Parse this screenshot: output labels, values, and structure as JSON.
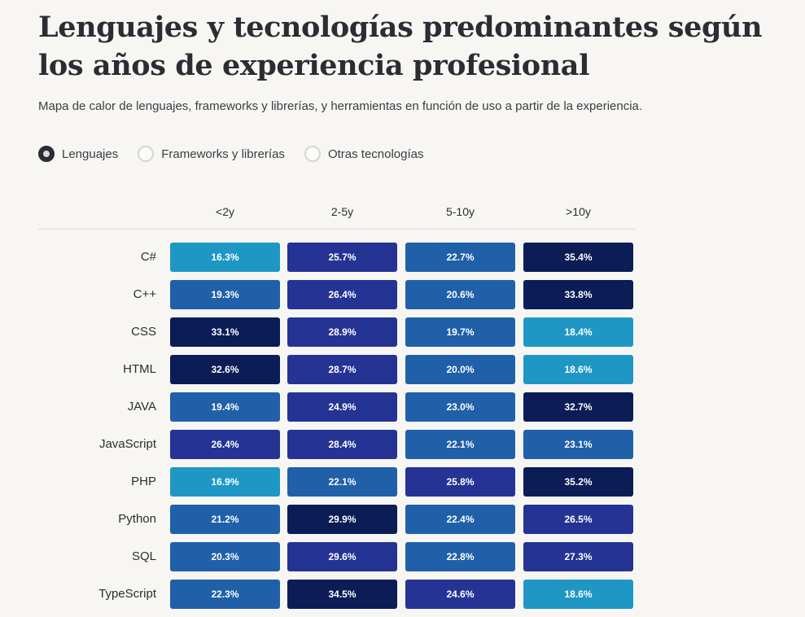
{
  "title": "Lenguajes y tecnologías predominantes según los años de experiencia profesional",
  "subtitle": "Mapa de calor de lenguajes, frameworks y librerías, y herramientas en función de uso a partir de la experiencia.",
  "filters": [
    {
      "label": "Lenguajes",
      "selected": true
    },
    {
      "label": "Frameworks y librerías",
      "selected": false
    },
    {
      "label": "Otras tecnologías",
      "selected": false
    }
  ],
  "colors": {
    "light": "#1f97c4",
    "medium": "#2060a8",
    "strong": "#253394",
    "darkest": "#0b1c56"
  },
  "chart_data": {
    "type": "heatmap",
    "columns": [
      "<2y",
      "2-5y",
      "5-10y",
      ">10y"
    ],
    "rows": [
      {
        "label": "C#",
        "values": [
          16.3,
          25.7,
          22.7,
          35.4
        ],
        "display": [
          "16.3%",
          "25.7%",
          "22.7%",
          "35.4%"
        ]
      },
      {
        "label": "C++",
        "values": [
          19.3,
          26.4,
          20.6,
          33.8
        ],
        "display": [
          "19.3%",
          "26.4%",
          "20.6%",
          "33.8%"
        ]
      },
      {
        "label": "CSS",
        "values": [
          33.1,
          28.9,
          19.7,
          18.4
        ],
        "display": [
          "33.1%",
          "28.9%",
          "19.7%",
          "18.4%"
        ]
      },
      {
        "label": "HTML",
        "values": [
          32.6,
          28.7,
          20.0,
          18.6
        ],
        "display": [
          "32.6%",
          "28.7%",
          "20.0%",
          "18.6%"
        ]
      },
      {
        "label": "JAVA",
        "values": [
          19.4,
          24.9,
          23.0,
          32.7
        ],
        "display": [
          "19.4%",
          "24.9%",
          "23.0%",
          "32.7%"
        ]
      },
      {
        "label": "JavaScript",
        "values": [
          26.4,
          28.4,
          22.1,
          23.1
        ],
        "display": [
          "26.4%",
          "28.4%",
          "22.1%",
          "23.1%"
        ]
      },
      {
        "label": "PHP",
        "values": [
          16.9,
          22.1,
          25.8,
          35.2
        ],
        "display": [
          "16.9%",
          "22.1%",
          "25.8%",
          "35.2%"
        ]
      },
      {
        "label": "Python",
        "values": [
          21.2,
          29.9,
          22.4,
          26.5
        ],
        "display": [
          "21.2%",
          "29.9%",
          "22.4%",
          "26.5%"
        ]
      },
      {
        "label": "SQL",
        "values": [
          20.3,
          29.6,
          22.8,
          27.3
        ],
        "display": [
          "20.3%",
          "29.6%",
          "22.8%",
          "27.3%"
        ]
      },
      {
        "label": "TypeScript",
        "values": [
          22.3,
          34.5,
          24.6,
          18.6
        ],
        "display": [
          "22.3%",
          "34.5%",
          "24.6%",
          "18.6%"
        ]
      }
    ]
  }
}
